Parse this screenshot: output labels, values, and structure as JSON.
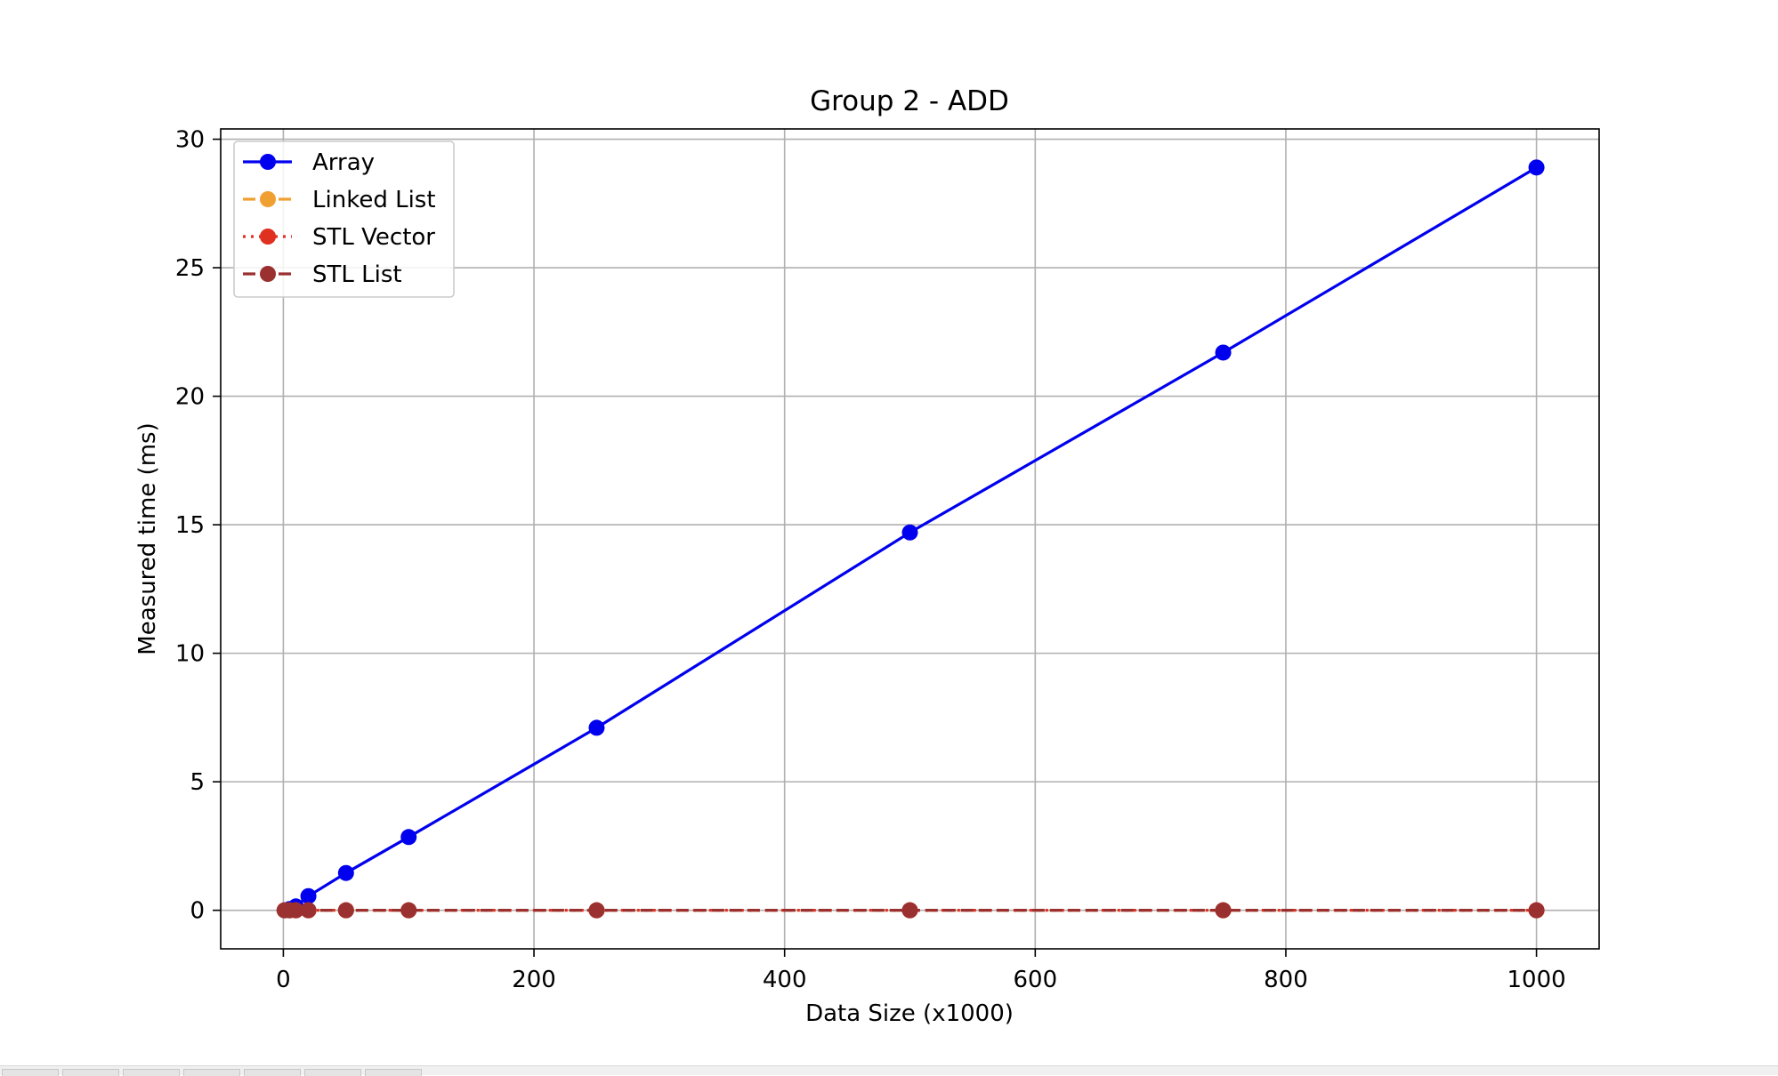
{
  "chart_data": {
    "type": "line",
    "title": "Group 2 - ADD",
    "xlabel": "Data Size (x1000)",
    "ylabel": "Measured time (ms)",
    "xlim": [
      -50,
      1050
    ],
    "ylim": [
      -1.5,
      30.4
    ],
    "xticks": [
      0,
      200,
      400,
      600,
      800,
      1000
    ],
    "yticks": [
      0,
      5,
      10,
      15,
      20,
      25,
      30
    ],
    "grid": true,
    "legend_position": "top-left",
    "x": [
      1,
      5,
      10,
      20,
      50,
      100,
      250,
      500,
      750,
      1000
    ],
    "series": [
      {
        "name": "Array",
        "color": "#0000ee",
        "dash": "solid",
        "values": [
          0.0,
          0.05,
          0.15,
          0.55,
          1.45,
          2.85,
          7.1,
          14.7,
          21.7,
          28.9
        ]
      },
      {
        "name": "Linked List",
        "color": "#f0a030",
        "dash": "dashed",
        "values": [
          0,
          0,
          0,
          0,
          0,
          0,
          0,
          0,
          0,
          0
        ]
      },
      {
        "name": "STL Vector",
        "color": "#e03020",
        "dash": "dotted",
        "values": [
          0,
          0,
          0,
          0,
          0,
          0,
          0,
          0,
          0,
          0
        ]
      },
      {
        "name": "STL List",
        "color": "#9a3030",
        "dash": "dashed",
        "values": [
          0,
          0,
          0,
          0,
          0,
          0,
          0,
          0,
          0,
          0
        ]
      }
    ]
  }
}
